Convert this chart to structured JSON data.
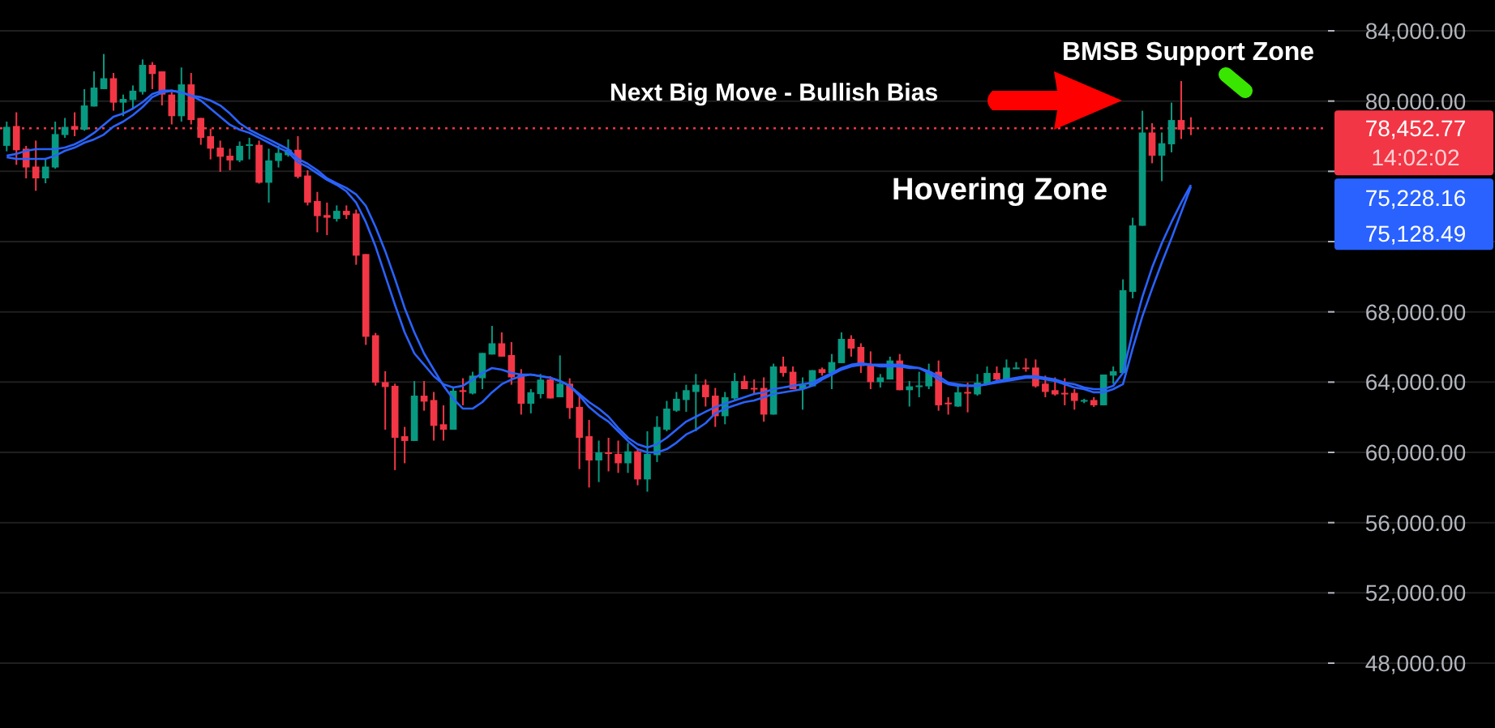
{
  "chart_data": {
    "type": "candlestick",
    "categories": [
      null,
      null,
      null,
      null,
      null,
      null,
      null,
      null,
      null,
      null,
      null,
      null,
      null,
      null,
      null,
      null,
      null,
      null,
      null,
      null,
      null,
      null,
      null,
      null,
      null,
      null,
      null,
      null,
      null,
      null,
      null,
      null,
      null,
      null,
      null,
      null,
      null,
      null,
      null,
      null,
      null,
      null,
      null,
      null,
      null,
      null,
      null,
      null,
      null,
      null,
      null,
      null,
      null,
      null,
      null,
      null,
      null,
      null,
      null,
      null,
      null,
      null,
      null,
      null,
      null,
      null,
      null,
      null,
      null,
      null,
      null,
      null,
      null,
      null,
      null,
      null,
      null,
      null,
      null,
      null,
      null,
      null,
      null,
      null,
      null,
      null,
      null,
      null,
      null,
      null,
      null,
      null,
      null,
      null,
      null,
      null,
      null,
      null,
      null,
      null,
      null,
      null,
      null,
      null,
      null,
      null,
      null,
      null,
      null,
      null,
      null,
      null,
      null,
      null,
      null,
      null,
      null,
      null,
      null,
      null,
      null,
      null,
      null
    ],
    "series": [
      {
        "ohlc": [
          [
            77450,
            78830,
            77140,
            78530
          ],
          [
            78580,
            79360,
            76370,
            77200
          ],
          [
            77290,
            77450,
            75600,
            76220
          ],
          [
            76270,
            77750,
            74890,
            75600
          ],
          [
            75600,
            76710,
            75320,
            76270
          ],
          [
            76220,
            78830,
            76150,
            78120
          ],
          [
            78070,
            79040,
            77910,
            78530
          ],
          [
            78580,
            79360,
            78000,
            78370
          ],
          [
            78370,
            80680,
            78310,
            79750
          ],
          [
            79690,
            81690,
            79690,
            80770
          ],
          [
            80680,
            82680,
            80680,
            81300
          ],
          [
            81300,
            81600,
            79450,
            79910
          ],
          [
            79910,
            80370,
            79140,
            80120
          ],
          [
            80060,
            80890,
            79600,
            80590
          ],
          [
            80520,
            82370,
            80370,
            82060
          ],
          [
            82060,
            82220,
            80680,
            81540
          ],
          [
            81690,
            81690,
            79750,
            80370
          ],
          [
            80370,
            80520,
            78670,
            79140
          ],
          [
            79140,
            81910,
            78830,
            80950
          ],
          [
            80950,
            81600,
            78670,
            78920
          ],
          [
            79040,
            79040,
            77510,
            77910
          ],
          [
            78000,
            78430,
            76680,
            77290
          ],
          [
            77350,
            77750,
            75970,
            76830
          ],
          [
            76890,
            77290,
            76060,
            76620
          ],
          [
            76620,
            77700,
            76520,
            77450
          ],
          [
            77510,
            77910,
            76680,
            77540
          ],
          [
            77510,
            77750,
            75300,
            75350
          ],
          [
            75350,
            77290,
            74220,
            76620
          ],
          [
            76590,
            77450,
            76220,
            77050
          ],
          [
            76920,
            77820,
            76830,
            77230
          ],
          [
            77230,
            78000,
            75600,
            75690
          ],
          [
            75760,
            76060,
            74060,
            74220
          ],
          [
            74310,
            74830,
            72530,
            73450
          ],
          [
            73510,
            74220,
            72370,
            73360
          ],
          [
            73290,
            74060,
            73140,
            73750
          ],
          [
            73750,
            74060,
            73290,
            73510
          ],
          [
            73600,
            73820,
            70680,
            71200
          ],
          [
            71290,
            71290,
            66120,
            66580
          ],
          [
            66670,
            66800,
            63800,
            63970
          ],
          [
            64000,
            64620,
            61290,
            63720
          ],
          [
            63790,
            63910,
            58990,
            60830
          ],
          [
            60920,
            61450,
            59380,
            60650
          ],
          [
            60650,
            64060,
            60650,
            63230
          ],
          [
            63230,
            64060,
            62370,
            62890
          ],
          [
            62980,
            63440,
            60670,
            61510
          ],
          [
            61600,
            62680,
            60670,
            61290
          ],
          [
            61290,
            63670,
            61290,
            63510
          ],
          [
            63540,
            64220,
            62680,
            63440
          ],
          [
            63350,
            64590,
            63300,
            64370
          ],
          [
            64220,
            65660,
            63600,
            65660
          ],
          [
            65570,
            67200,
            65570,
            66210
          ],
          [
            66210,
            66830,
            65450,
            65450
          ],
          [
            65540,
            66280,
            63850,
            64270
          ],
          [
            64430,
            64740,
            62150,
            62770
          ],
          [
            62770,
            63600,
            62220,
            63420
          ],
          [
            63320,
            64460,
            63070,
            64140
          ],
          [
            64150,
            64340,
            63070,
            63070
          ],
          [
            63140,
            65520,
            63140,
            63910
          ],
          [
            63910,
            64220,
            61910,
            62520
          ],
          [
            62590,
            63300,
            59050,
            60830
          ],
          [
            60920,
            61850,
            58000,
            59540
          ],
          [
            59540,
            60670,
            58310,
            60000
          ],
          [
            60000,
            60830,
            58920,
            59910
          ],
          [
            59910,
            60670,
            58830,
            59380
          ],
          [
            59380,
            60530,
            58830,
            60060
          ],
          [
            60060,
            60160,
            58130,
            58460
          ],
          [
            58460,
            61200,
            57760,
            59910
          ],
          [
            59840,
            62060,
            59450,
            61450
          ],
          [
            61290,
            62930,
            61200,
            62490
          ],
          [
            62370,
            63440,
            62310,
            63050
          ],
          [
            62980,
            63850,
            62310,
            63540
          ],
          [
            63440,
            64460,
            61200,
            63850
          ],
          [
            63850,
            64150,
            62610,
            63140
          ],
          [
            63230,
            63670,
            61450,
            62060
          ],
          [
            62060,
            63440,
            61600,
            63140
          ],
          [
            63070,
            64520,
            62980,
            64060
          ],
          [
            64060,
            64370,
            63600,
            63600
          ],
          [
            63670,
            64150,
            63300,
            63600
          ],
          [
            63670,
            64270,
            61750,
            62150
          ],
          [
            62150,
            65050,
            62150,
            64890
          ],
          [
            64890,
            65450,
            64310,
            64520
          ],
          [
            64590,
            64890,
            63600,
            63600
          ],
          [
            63600,
            64270,
            62430,
            63850
          ],
          [
            63760,
            64680,
            63760,
            64680
          ],
          [
            64740,
            64830,
            64370,
            64520
          ],
          [
            64520,
            65600,
            63600,
            65140
          ],
          [
            65080,
            66830,
            65080,
            66460
          ],
          [
            66460,
            66670,
            65450,
            65910
          ],
          [
            66000,
            66210,
            64520,
            64920
          ],
          [
            65000,
            65750,
            63600,
            64000
          ],
          [
            64000,
            64460,
            63690,
            64270
          ],
          [
            64150,
            65450,
            64150,
            65230
          ],
          [
            65230,
            65600,
            63540,
            63540
          ],
          [
            63540,
            64060,
            62610,
            63760
          ],
          [
            63760,
            64590,
            63140,
            63810
          ],
          [
            63760,
            65050,
            63600,
            64590
          ],
          [
            64590,
            65230,
            62370,
            62680
          ],
          [
            62830,
            63140,
            62150,
            62740
          ],
          [
            62610,
            63760,
            62590,
            63420
          ],
          [
            63440,
            63970,
            62280,
            63350
          ],
          [
            63300,
            64460,
            63230,
            63970
          ],
          [
            63910,
            64890,
            63910,
            64520
          ],
          [
            64520,
            64890,
            63970,
            64150
          ],
          [
            64150,
            65290,
            64060,
            64830
          ],
          [
            64740,
            65140,
            64740,
            64830
          ],
          [
            64830,
            65350,
            64590,
            64740
          ],
          [
            64830,
            65290,
            63690,
            63760
          ],
          [
            63910,
            64370,
            63140,
            63440
          ],
          [
            63540,
            64270,
            63230,
            63300
          ],
          [
            63390,
            64220,
            62680,
            63300
          ],
          [
            63390,
            63600,
            62430,
            62930
          ],
          [
            62890,
            63050,
            62800,
            62980
          ],
          [
            62980,
            63140,
            62590,
            62680
          ],
          [
            62680,
            64430,
            62680,
            64430
          ],
          [
            64370,
            64890,
            63910,
            64620
          ],
          [
            64520,
            69850,
            64520,
            69230
          ],
          [
            69140,
            73360,
            68770,
            72920
          ],
          [
            72900,
            79450,
            72900,
            78210
          ],
          [
            78210,
            78740,
            76460,
            76890
          ],
          [
            76890,
            78210,
            75440,
            77600
          ],
          [
            77540,
            79910,
            77080,
            78920
          ],
          [
            78920,
            81140,
            77840,
            78370
          ],
          [
            78500,
            79080,
            78060,
            78450
          ]
        ],
        "colors": [
          "#089981",
          "#f23645",
          "#f23645",
          "#f23645",
          "#089981",
          "#089981",
          "#089981",
          "#f23645",
          "#089981",
          "#089981",
          "#089981",
          "#f23645",
          "#089981",
          "#089981",
          "#089981",
          "#f23645",
          "#f23645",
          "#f23645",
          "#089981",
          "#f23645",
          "#f23645",
          "#f23645",
          "#f23645",
          "#f23645",
          "#089981",
          "#089981",
          "#f23645",
          "#089981",
          "#089981",
          "#089981",
          "#f23645",
          "#f23645",
          "#f23645",
          "#f23645",
          "#089981",
          "#f23645",
          "#f23645",
          "#f23645",
          "#f23645",
          "#f23645",
          "#f23645",
          "#f23645",
          "#089981",
          "#f23645",
          "#f23645",
          "#f23645",
          "#089981",
          "#f23645",
          "#089981",
          "#089981",
          "#089981",
          "#f23645",
          "#f23645",
          "#f23645",
          "#089981",
          "#089981",
          "#f23645",
          "#089981",
          "#f23645",
          "#f23645",
          "#f23645",
          "#089981",
          "#f23645",
          "#f23645",
          "#089981",
          "#f23645",
          "#089981",
          "#089981",
          "#089981",
          "#089981",
          "#089981",
          "#089981",
          "#f23645",
          "#f23645",
          "#089981",
          "#089981",
          "#f23645",
          "#f23645",
          "#f23645",
          "#089981",
          "#f23645",
          "#f23645",
          "#089981",
          "#089981",
          "#f23645",
          "#089981",
          "#089981",
          "#f23645",
          "#f23645",
          "#f23645",
          "#089981",
          "#089981",
          "#f23645",
          "#089981",
          "#089981",
          "#089981",
          "#f23645",
          "#f23645",
          "#089981",
          "#f23645",
          "#089981",
          "#089981",
          "#f23645",
          "#089981",
          "#089981",
          "#f23645",
          "#f23645",
          "#f23645",
          "#f23645",
          "#f23645",
          "#f23645",
          "#089981",
          "#f23645",
          "#089981",
          "#089981",
          "#089981",
          "#089981",
          "#089981",
          "#f23645",
          "#089981",
          "#089981",
          "#f23645",
          "#f23645"
        ]
      },
      {
        "type": "line",
        "color": "#2962ff",
        "values": [
          76890,
          76990,
          77170,
          77260,
          77260,
          77260,
          77350,
          77540,
          77820,
          78190,
          78650,
          79110,
          79290,
          79570,
          79940,
          80400,
          80590,
          80590,
          80490,
          80310,
          80030,
          79570,
          79110,
          78650,
          78370,
          78190,
          77910,
          77630,
          77350,
          77080,
          76520,
          76250,
          75880,
          75510,
          75230,
          74860,
          74220,
          73110,
          71720,
          70060,
          68400,
          66830,
          65630,
          64990,
          64340,
          63880,
          63690,
          63790,
          64150,
          64520,
          64800,
          64710,
          64520,
          64430,
          64430,
          64340,
          64250,
          64060,
          63790,
          63320,
          62860,
          62490,
          62030,
          61390,
          60830,
          60460,
          60280,
          60460,
          60830,
          61290,
          61750,
          62030,
          62310,
          62580,
          62770,
          62950,
          63140,
          63320,
          63420,
          63600,
          63690,
          63790,
          63880,
          63970,
          64250,
          64520,
          64800,
          64990,
          65080,
          64990,
          64990,
          64990,
          64990,
          64890,
          64800,
          64520,
          64150,
          63880,
          63790,
          63790,
          63790,
          63880,
          64060,
          64150,
          64250,
          64340,
          64340,
          64250,
          64150,
          63970,
          63880,
          63690,
          63600,
          63600,
          63790,
          64520,
          66830,
          68860,
          70520,
          71910,
          73110,
          74220,
          75228.16
        ]
      },
      {
        "type": "line",
        "color": "#2962ff",
        "values": [
          76800,
          76710,
          76710,
          76710,
          76710,
          76890,
          77170,
          77350,
          77630,
          77820,
          78090,
          78550,
          78830,
          79200,
          79660,
          80220,
          80490,
          80590,
          80490,
          80310,
          80220,
          80030,
          79750,
          79290,
          78740,
          78370,
          78090,
          77820,
          77540,
          77260,
          76710,
          76430,
          76060,
          75600,
          75320,
          75050,
          74680,
          74030,
          72830,
          71450,
          69880,
          68220,
          66830,
          65630,
          64710,
          63790,
          63050,
          62490,
          62490,
          62860,
          63420,
          63880,
          64150,
          64340,
          64430,
          64340,
          64250,
          64060,
          63790,
          63230,
          62580,
          62120,
          61750,
          61200,
          60650,
          60180,
          60000,
          60000,
          60180,
          60550,
          61020,
          61290,
          61660,
          62220,
          62490,
          62680,
          62860,
          62950,
          63140,
          63320,
          63420,
          63510,
          63600,
          63790,
          64150,
          64430,
          64710,
          64890,
          64990,
          64990,
          64890,
          64890,
          64890,
          64800,
          64800,
          64620,
          64340,
          63970,
          63880,
          63790,
          63790,
          63880,
          63970,
          64060,
          64150,
          64250,
          64250,
          64150,
          64060,
          63880,
          63690,
          63600,
          63420,
          63420,
          63600,
          63880,
          65910,
          67750,
          69320,
          70800,
          72190,
          73660,
          75128.49
        ]
      }
    ],
    "ylim": [
      44308,
      85754
    ],
    "yticks": [
      {
        "value": 48000,
        "label": "48,000.00"
      },
      {
        "value": 52000,
        "label": "52,000.00"
      },
      {
        "value": 56000,
        "label": "56,000.00"
      },
      {
        "value": 60000,
        "label": "60,000.00"
      },
      {
        "value": 64000,
        "label": "64,000.00"
      },
      {
        "value": 68000,
        "label": "68,000.00"
      },
      {
        "value": 72000,
        "label": null
      },
      {
        "value": 76000,
        "label": null
      },
      {
        "value": 80000,
        "label": "80,000.00"
      },
      {
        "value": 84000,
        "label": "84,000.00"
      }
    ],
    "grid": "y",
    "ref_lines": [
      {
        "axis": "y",
        "value": 78452.77,
        "label": "78,452.77",
        "color": "#f23645",
        "line_style": "dotted"
      }
    ],
    "annotations": [
      "Next Big Move - Bullish Bias",
      "Hovering Zone",
      "BMSB Support Zone",
      "14:02:02",
      "75,228.16",
      "75,128.49"
    ]
  }
}
